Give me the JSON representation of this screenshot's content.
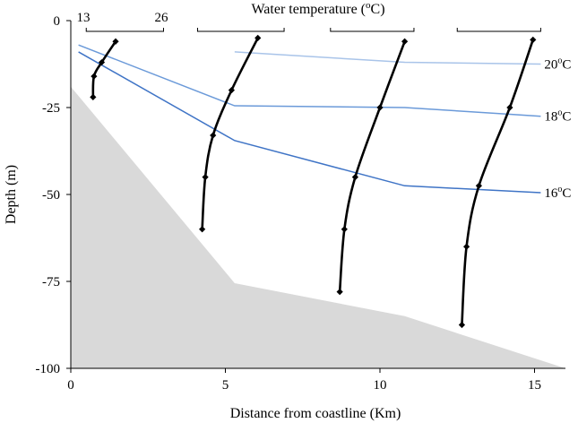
{
  "chart_data": {
    "type": "line",
    "xlabel": "Distance from coastline (Km)",
    "ylabel": "Depth (m)",
    "xlim": [
      0,
      16
    ],
    "ylim": [
      -100,
      0
    ],
    "x_ticks": [
      0,
      5,
      10,
      15
    ],
    "y_ticks": [
      0,
      -25,
      -50,
      -75,
      -100
    ],
    "x_tick_labels": [
      "0",
      "5",
      "10",
      "15"
    ],
    "y_tick_labels": [
      "0",
      "-25",
      "-50",
      "-75",
      "-100"
    ],
    "grid": false,
    "seafloor": {
      "color": "#d9d9d9",
      "x": [
        0,
        5.3,
        10.8,
        16
      ],
      "y": [
        -19,
        -75.5,
        -85,
        -100
      ]
    },
    "isotherms": [
      {
        "name": "20oC",
        "label_base": "20",
        "label_sup": "o",
        "label_unit": "C",
        "color": "#a9c4e9",
        "x": [
          5.3,
          10.8,
          15.2
        ],
        "y": [
          -9,
          -12,
          -12.5
        ]
      },
      {
        "name": "18oC",
        "label_base": "18",
        "label_sup": "o",
        "label_unit": "C",
        "color": "#6b9ad9",
        "x": [
          0.25,
          5.3,
          10.8,
          15.2
        ],
        "y": [
          -7,
          -24.5,
          -25,
          -27.5
        ]
      },
      {
        "name": "16oC",
        "label_base": "16",
        "label_sup": "o",
        "label_unit": "C",
        "color": "#3f74c6",
        "x": [
          0.25,
          5.3,
          10.8,
          15.2
        ],
        "y": [
          -9,
          -34.5,
          -47.5,
          -49.5
        ]
      }
    ],
    "temperature_title": {
      "prefix": "Water temperature (",
      "sup": "o",
      "suffix": "C)"
    },
    "temperature_scale": {
      "min_label": "13",
      "max_label": "26"
    },
    "temperature_brackets": [
      {
        "x_start": 0.5,
        "x_end": 3.0
      },
      {
        "x_start": 4.1,
        "x_end": 6.9
      },
      {
        "x_start": 8.4,
        "x_end": 11.1
      },
      {
        "x_start": 12.5,
        "x_end": 15.2
      }
    ],
    "profiles": [
      {
        "x": [
          1.45,
          1.0,
          0.75,
          0.72
        ],
        "y": [
          -6,
          -12,
          -16,
          -22
        ]
      },
      {
        "x": [
          6.05,
          5.2,
          4.6,
          4.35,
          4.25
        ],
        "y": [
          -5,
          -20,
          -33,
          -45,
          -60
        ]
      },
      {
        "x": [
          10.8,
          10.0,
          9.2,
          8.85,
          8.7
        ],
        "y": [
          -6,
          -25,
          -45,
          -60,
          -78
        ]
      },
      {
        "x": [
          14.95,
          14.2,
          13.2,
          12.8,
          12.65
        ],
        "y": [
          -5.5,
          -25,
          -47.5,
          -65,
          -87.5
        ]
      }
    ]
  }
}
